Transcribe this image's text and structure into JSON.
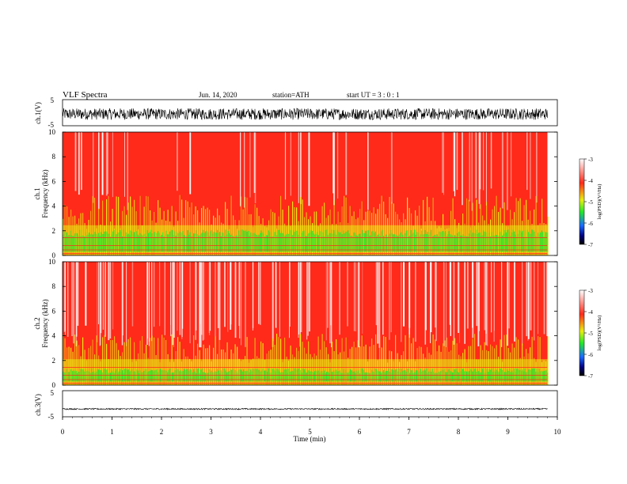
{
  "header": {
    "title": "VLF  Spectra",
    "date": "Jun. 14, 2020",
    "station": "station=ATH",
    "start": "start  UT  =    3  : 0  : 1"
  },
  "chart_data": [
    {
      "type": "line",
      "ylabel": "ch.1(V)",
      "xlim": [
        0,
        10
      ],
      "ylim": [
        -5,
        5
      ],
      "yticks": [
        "5",
        "-5"
      ],
      "description_values": {
        "center": -0.5,
        "amplitude": 2.2
      }
    },
    {
      "type": "heatmap",
      "ylabel": "ch.1\nFrequency (kHz)",
      "xlim": [
        0,
        10
      ],
      "ylim": [
        0,
        10
      ],
      "yticks": [
        "0",
        "2",
        "4",
        "6",
        "8",
        "10"
      ],
      "colorbar": {
        "label": "log(PSD)(V²/Hz)",
        "range": [
          -7,
          -3
        ],
        "ticks": [
          "-3",
          "-4",
          "-5",
          "-6",
          "-7"
        ]
      },
      "bands": {
        "green_top_khz": 2.0,
        "yellow_top_khz": 3.5,
        "white_fraction": 0.08
      }
    },
    {
      "type": "heatmap",
      "ylabel": "ch.2\nFrequency (kHz)",
      "xlim": [
        0,
        10
      ],
      "ylim": [
        0,
        10
      ],
      "yticks": [
        "0",
        "2",
        "4",
        "6",
        "8",
        "10"
      ],
      "colorbar": {
        "label": "log(PSD)(V²/Hz)",
        "range": [
          -7,
          -3
        ],
        "ticks": [
          "-3",
          "-4",
          "-5",
          "-6",
          "-7"
        ]
      },
      "bands": {
        "green_top_khz": 1.3,
        "yellow_top_khz": 3.0,
        "white_fraction": 0.45
      }
    },
    {
      "type": "line",
      "ylabel": "ch.3(V)",
      "xlim": [
        0,
        10
      ],
      "ylim": [
        -5,
        5
      ],
      "yticks": [
        "5",
        "-5"
      ],
      "xlabel": "Time  (min)",
      "xticks": [
        "0",
        "1",
        "2",
        "3",
        "4",
        "5",
        "6",
        "7",
        "8",
        "9",
        "10"
      ],
      "description_values": {
        "center": -2.0,
        "amplitude": 0.25
      }
    }
  ],
  "data_end_min": 9.8,
  "colors": {
    "red": "#ff2a1a",
    "white": "#ffffff",
    "yellow": "#e8ee10",
    "green": "#22e82a",
    "black": "#000000"
  }
}
